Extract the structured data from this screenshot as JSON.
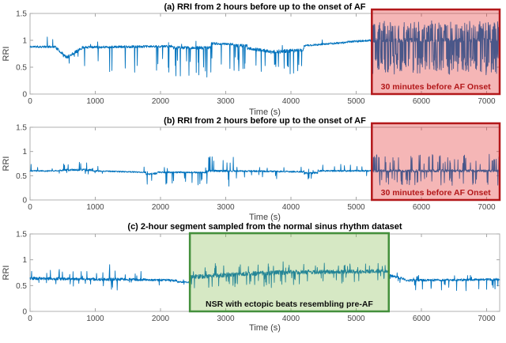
{
  "figure": {
    "background": "#ffffff",
    "line_color": "#0072BD",
    "axis_color": "#b2b2b2",
    "tick_text_color": "#474747",
    "title_color": "#000000"
  },
  "series_format": [
    "t_start",
    "t_end",
    "base_start",
    "base_end",
    "noise_amp",
    "p_spike_up",
    "spike_up_max",
    "p_spike_down",
    "spike_down_max"
  ],
  "chart_data": [
    {
      "type": "line",
      "title": "(a) RRI from 2 hours before up to the onset of AF",
      "xlabel": "Time (s)",
      "ylabel": "RRI",
      "xlim": [
        0,
        7200
      ],
      "ylim": [
        0,
        1.5
      ],
      "xticks": [
        0,
        1000,
        2000,
        3000,
        4000,
        5000,
        6000,
        7000
      ],
      "yticks": [
        0,
        0.5,
        1,
        1.5
      ],
      "grid": false,
      "annotation": {
        "label": "30 minutes before AF Onset",
        "x0": 5240,
        "x1": 7200,
        "fill": "rgba(224,32,32,0.33)",
        "border": "#b3181a",
        "text_color": "#b3181a"
      },
      "series": [
        {
          "name": "RRI",
          "seed": 11,
          "segments": [
            [
              0,
              400,
              0.88,
              0.88,
              0.02,
              0.008,
              0.25,
              0.015,
              0.25
            ],
            [
              400,
              560,
              0.86,
              0.68,
              0.025,
              0.004,
              0.1,
              0.02,
              0.1
            ],
            [
              560,
              800,
              0.68,
              0.86,
              0.03,
              0.004,
              0.1,
              0.02,
              0.12
            ],
            [
              800,
              2200,
              0.87,
              0.89,
              0.022,
              0.005,
              0.12,
              0.03,
              0.55
            ],
            [
              2200,
              2780,
              0.86,
              0.86,
              0.028,
              0.005,
              0.12,
              0.09,
              0.55
            ],
            [
              2780,
              3120,
              0.94,
              0.93,
              0.022,
              0.006,
              0.1,
              0.03,
              0.45
            ],
            [
              3120,
              3330,
              0.9,
              0.9,
              0.028,
              0.005,
              0.1,
              0.13,
              0.5
            ],
            [
              3330,
              3650,
              0.85,
              0.8,
              0.03,
              0.005,
              0.1,
              0.05,
              0.4
            ],
            [
              3650,
              4200,
              0.78,
              0.82,
              0.035,
              0.006,
              0.12,
              0.12,
              0.45
            ],
            [
              4200,
              4850,
              0.9,
              0.96,
              0.018,
              0.008,
              0.12,
              0.012,
              0.35
            ],
            [
              4850,
              5240,
              0.97,
              1.0,
              0.018,
              0.01,
              0.28,
              0.01,
              0.6
            ],
            [
              5240,
              7200,
              1.0,
              1.0,
              0.04,
              0.28,
              0.33,
              0.3,
              0.62
            ]
          ]
        }
      ]
    },
    {
      "type": "line",
      "title": "(b) RRI from 2 hours before up to the onset of AF",
      "xlabel": "Time (s)",
      "ylabel": "RRI",
      "xlim": [
        0,
        7200
      ],
      "ylim": [
        0,
        1.5
      ],
      "xticks": [
        0,
        1000,
        2000,
        3000,
        4000,
        5000,
        6000,
        7000
      ],
      "yticks": [
        0,
        0.5,
        1,
        1.5
      ],
      "grid": false,
      "annotation": {
        "label": "30 minutes before AF Onset",
        "x0": 5240,
        "x1": 7200,
        "fill": "rgba(224,32,32,0.33)",
        "border": "#b3181a",
        "text_color": "#b3181a"
      },
      "series": [
        {
          "name": "RRI",
          "seed": 23,
          "segments": [
            [
              0,
              220,
              0.6,
              0.6,
              0.013,
              0.012,
              0.15,
              0.008,
              0.08
            ],
            [
              220,
              320,
              0.6,
              0.6,
              0.016,
              0.035,
              0.28,
              0.008,
              0.08
            ],
            [
              320,
              500,
              0.6,
              0.61,
              0.014,
              0.015,
              0.1,
              0.008,
              0.08
            ],
            [
              500,
              950,
              0.62,
              0.62,
              0.022,
              0.06,
              0.16,
              0.01,
              0.08
            ],
            [
              950,
              1780,
              0.6,
              0.57,
              0.013,
              0.015,
              0.1,
              0.01,
              0.08
            ],
            [
              1780,
              1950,
              0.53,
              0.55,
              0.018,
              0.01,
              0.08,
              0.05,
              0.2
            ],
            [
              1950,
              2700,
              0.57,
              0.57,
              0.016,
              0.02,
              0.12,
              0.03,
              0.28
            ],
            [
              2700,
              3120,
              0.6,
              0.6,
              0.02,
              0.035,
              0.3,
              0.03,
              0.33
            ],
            [
              3120,
              4200,
              0.6,
              0.58,
              0.016,
              0.015,
              0.12,
              0.012,
              0.15
            ],
            [
              4200,
              4420,
              0.55,
              0.56,
              0.02,
              0.02,
              0.1,
              0.03,
              0.12
            ],
            [
              4420,
              5240,
              0.6,
              0.6,
              0.016,
              0.02,
              0.15,
              0.012,
              0.12
            ],
            [
              5240,
              7200,
              0.6,
              0.6,
              0.028,
              0.09,
              0.32,
              0.07,
              0.3
            ]
          ]
        }
      ]
    },
    {
      "type": "line",
      "title": "(c) 2-hour segment sampled from the normal sinus rhythm dataset",
      "xlabel": "Time (s)",
      "ylabel": "RRI",
      "xlim": [
        0,
        7200
      ],
      "ylim": [
        0,
        1.5
      ],
      "xticks": [
        0,
        1000,
        2000,
        3000,
        4000,
        5000,
        6000,
        7000
      ],
      "yticks": [
        0,
        0.5,
        1,
        1.5
      ],
      "grid": false,
      "annotation": {
        "label": "NSR with ectopic beats resembling pre-AF",
        "x0": 2450,
        "x1": 5500,
        "fill": "rgba(120,180,60,0.3)",
        "border": "#44903c",
        "text_color": "#0d0d0d"
      },
      "series": [
        {
          "name": "RRI",
          "seed": 5,
          "segments": [
            [
              0,
              1150,
              0.64,
              0.62,
              0.028,
              0.03,
              0.18,
              0.02,
              0.12
            ],
            [
              1150,
              1450,
              0.62,
              0.62,
              0.028,
              0.03,
              0.32,
              0.03,
              0.22
            ],
            [
              1450,
              2250,
              0.62,
              0.6,
              0.024,
              0.02,
              0.15,
              0.02,
              0.1
            ],
            [
              2250,
              2450,
              0.57,
              0.56,
              0.018,
              0.01,
              0.08,
              0.02,
              0.08
            ],
            [
              2450,
              3050,
              0.66,
              0.71,
              0.045,
              0.06,
              0.22,
              0.06,
              0.22
            ],
            [
              3050,
              4350,
              0.72,
              0.77,
              0.045,
              0.05,
              0.18,
              0.06,
              0.26
            ],
            [
              4350,
              5500,
              0.76,
              0.78,
              0.04,
              0.04,
              0.16,
              0.05,
              0.22
            ],
            [
              5500,
              5760,
              0.7,
              0.62,
              0.025,
              0.02,
              0.1,
              0.02,
              0.1
            ],
            [
              5760,
              7200,
              0.6,
              0.62,
              0.022,
              0.02,
              0.1,
              0.03,
              0.22
            ]
          ]
        }
      ]
    }
  ]
}
